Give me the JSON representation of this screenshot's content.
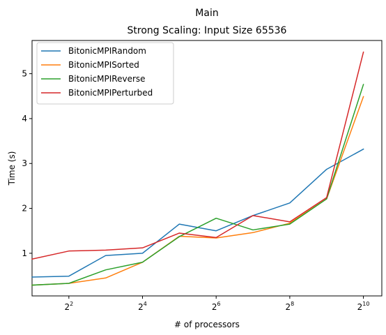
{
  "chart_data": {
    "type": "line",
    "title": "Main",
    "subtitle": "Strong Scaling: Input Size 65536",
    "xlabel": "# of processors",
    "ylabel": "Time (s)",
    "x_scale": "log2",
    "x": [
      2,
      4,
      8,
      16,
      32,
      64,
      128,
      256,
      512,
      1024
    ],
    "x_ticks": [
      {
        "base": "2",
        "exp": "2",
        "value": 4
      },
      {
        "base": "2",
        "exp": "4",
        "value": 16
      },
      {
        "base": "2",
        "exp": "6",
        "value": 64
      },
      {
        "base": "2",
        "exp": "8",
        "value": 256
      },
      {
        "base": "2",
        "exp": "10",
        "value": 1024
      }
    ],
    "y_ticks": [
      "1",
      "2",
      "3",
      "4",
      "5"
    ],
    "ylim": [
      0.05,
      5.74
    ],
    "legend_position": "top-left",
    "series": [
      {
        "name": "BitonicMPIRandom",
        "color": "#1f77b4",
        "values": [
          0.47,
          0.49,
          0.95,
          1.0,
          1.65,
          1.5,
          1.84,
          2.12,
          2.87,
          3.32
        ]
      },
      {
        "name": "BitonicMPISorted",
        "color": "#ff7f0e",
        "values": [
          0.29,
          0.33,
          0.45,
          0.8,
          1.38,
          1.34,
          1.46,
          1.67,
          2.21,
          4.49
        ]
      },
      {
        "name": "BitonicMPIReverse",
        "color": "#2ca02c",
        "values": [
          0.29,
          0.33,
          0.63,
          0.8,
          1.37,
          1.78,
          1.52,
          1.65,
          2.21,
          4.76
        ]
      },
      {
        "name": "BitonicMPIPerturbed",
        "color": "#d62728",
        "values": [
          0.87,
          1.05,
          1.07,
          1.12,
          1.45,
          1.35,
          1.84,
          1.7,
          2.24,
          5.48
        ]
      }
    ]
  }
}
